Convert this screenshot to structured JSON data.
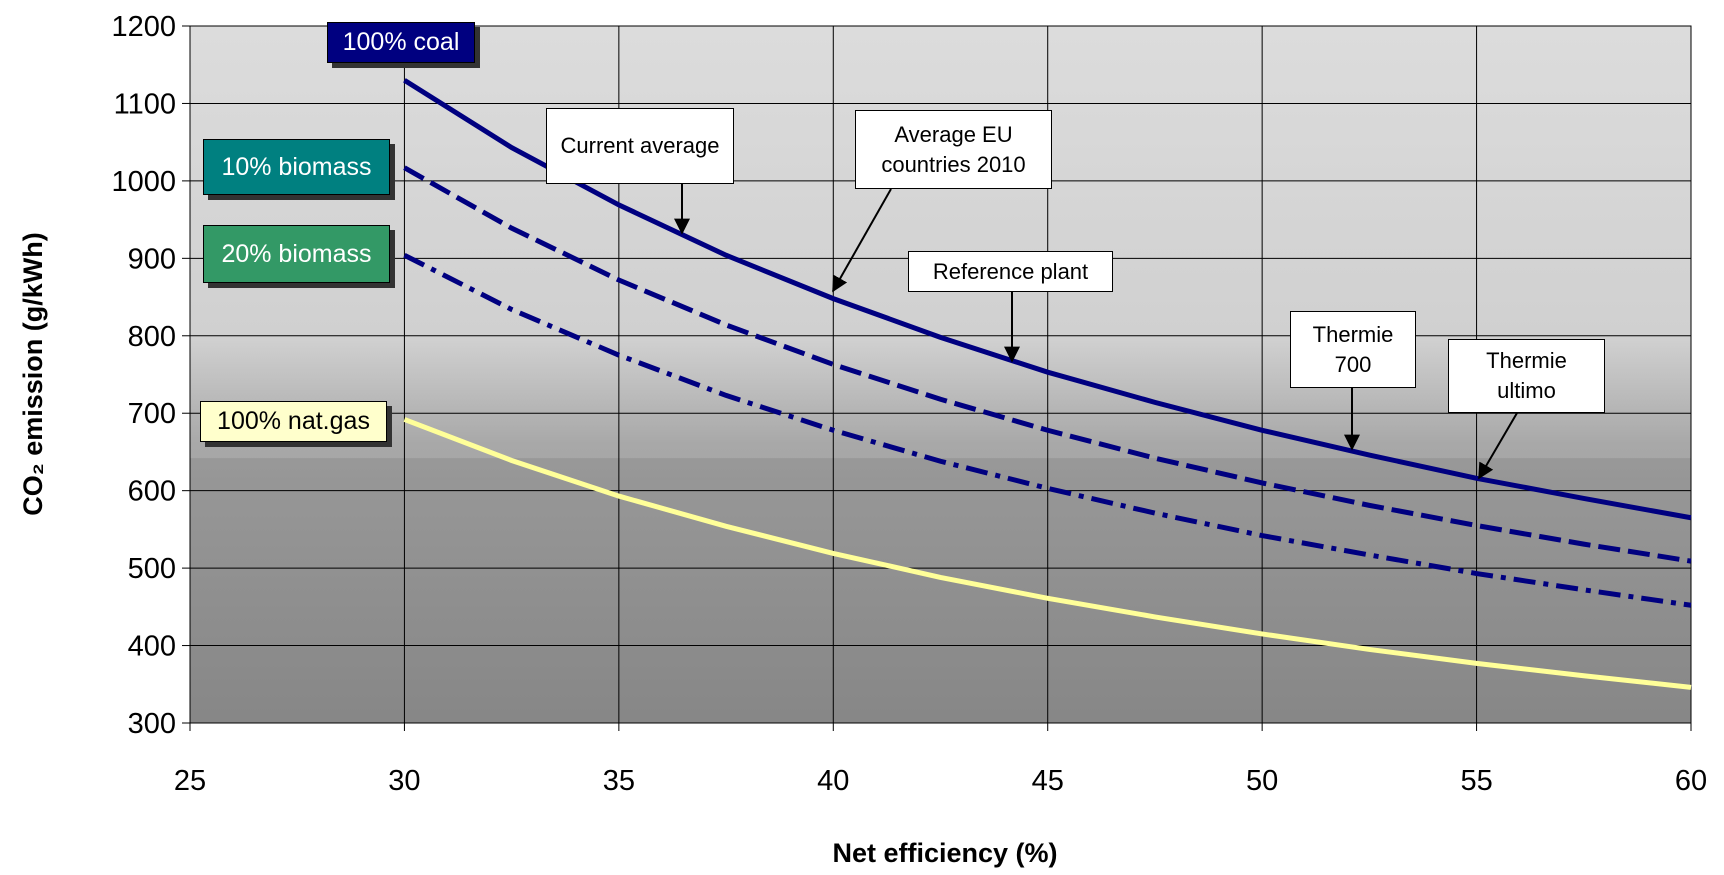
{
  "chart_data": {
    "type": "line",
    "x_label": "Net efficiency (%)",
    "y_label": "CO₂ emission (g/kWh)",
    "x": [
      30,
      32.5,
      35,
      37.5,
      40,
      42.5,
      45,
      47.5,
      50,
      52.5,
      55,
      57.5,
      60
    ],
    "series": [
      {
        "name": "100% coal",
        "color": "#000080",
        "box_color": "#000080",
        "dash": "solid",
        "values": [
          1130,
          1043,
          969,
          904,
          848,
          798,
          753,
          714,
          678,
          646,
          616,
          590,
          565
        ]
      },
      {
        "name": "10% biomass",
        "color": "#000080",
        "box_color": "#008080",
        "dash": "dash",
        "values": [
          1017,
          939,
          872,
          814,
          763,
          718,
          678,
          642,
          610,
          581,
          555,
          531,
          509
        ]
      },
      {
        "name": "20% biomass",
        "color": "#000080",
        "box_color": "#339966",
        "dash": "dashdot",
        "values": [
          904,
          834,
          775,
          723,
          678,
          638,
          603,
          571,
          542,
          517,
          493,
          472,
          452
        ]
      },
      {
        "name": "100% nat.gas",
        "color": "#ffff99",
        "box_color": "#ffffcc",
        "dash": "solid",
        "values": [
          692,
          639,
          593,
          554,
          519,
          488,
          461,
          437,
          415,
          395,
          377,
          361,
          346
        ]
      }
    ],
    "annotations": [
      "Current average",
      "Average EU countries 2010",
      "Reference plant",
      "Thermie 700",
      "Thermie ultimo"
    ],
    "xlim": [
      25,
      60
    ],
    "xticks": [
      25,
      30,
      35,
      40,
      45,
      50,
      55,
      60
    ],
    "ylim": [
      300,
      1200
    ],
    "yticks": [
      300,
      400,
      500,
      600,
      700,
      800,
      900,
      1000,
      1100,
      1200
    ],
    "grid": true
  }
}
